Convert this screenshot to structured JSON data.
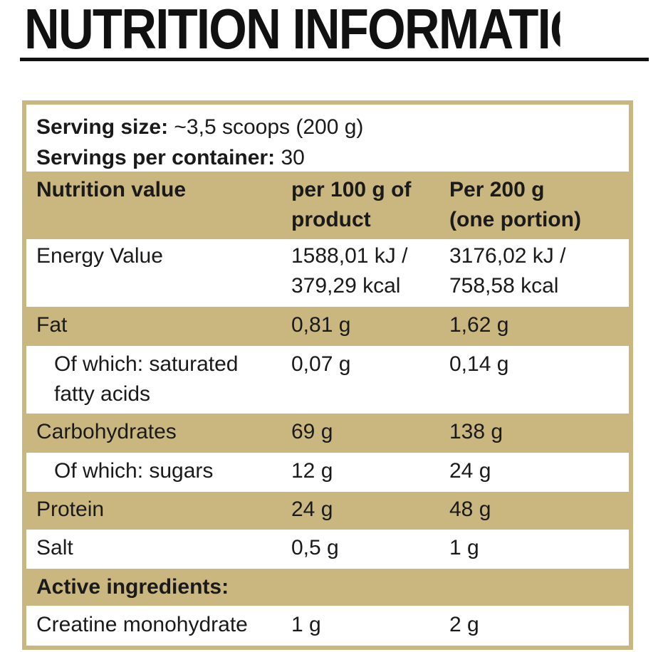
{
  "title": "NUTRITION INFORMATION",
  "serving": {
    "size_label": "Serving size:",
    "size_value": " ~3,5 scoops (200 g)",
    "per_container_label": "Servings per container:",
    "per_container_value": " 30"
  },
  "header": {
    "col1": "Nutrition value",
    "col2_line1": "per 100 g of",
    "col2_line2": "product",
    "col3_line1": "Per 200 g",
    "col3_line2": "(one portion)"
  },
  "rows": [
    {
      "name": "Energy Value",
      "per100_l1": "1588,01 kJ /",
      "per100_l2": "379,29 kcal",
      "per200_l1": "3176,02 kJ /",
      "per200_l2": "758,58 kcal"
    },
    {
      "name": "Fat",
      "per100": "0,81 g",
      "per200": "1,62 g"
    },
    {
      "name_l1": "Of which: saturated",
      "name_l2": "fatty acids",
      "per100": "0,07 g",
      "per200": "0,14 g"
    },
    {
      "name": "Carbohydrates",
      "per100": "69 g",
      "per200": "138 g"
    },
    {
      "name": "Of which: sugars",
      "per100": "12 g",
      "per200": "24 g"
    },
    {
      "name": "Protein",
      "per100": "24 g",
      "per200": "48 g"
    },
    {
      "name": "Salt",
      "per100": "0,5 g",
      "per200": "1 g"
    }
  ],
  "active": {
    "header": "Active ingredients:",
    "rows": [
      {
        "name": "Creatine monohydrate",
        "per100": "1 g",
        "per200": "2 g"
      }
    ]
  },
  "colors": {
    "band": "#c9b77f",
    "text": "#1a1a1a"
  }
}
